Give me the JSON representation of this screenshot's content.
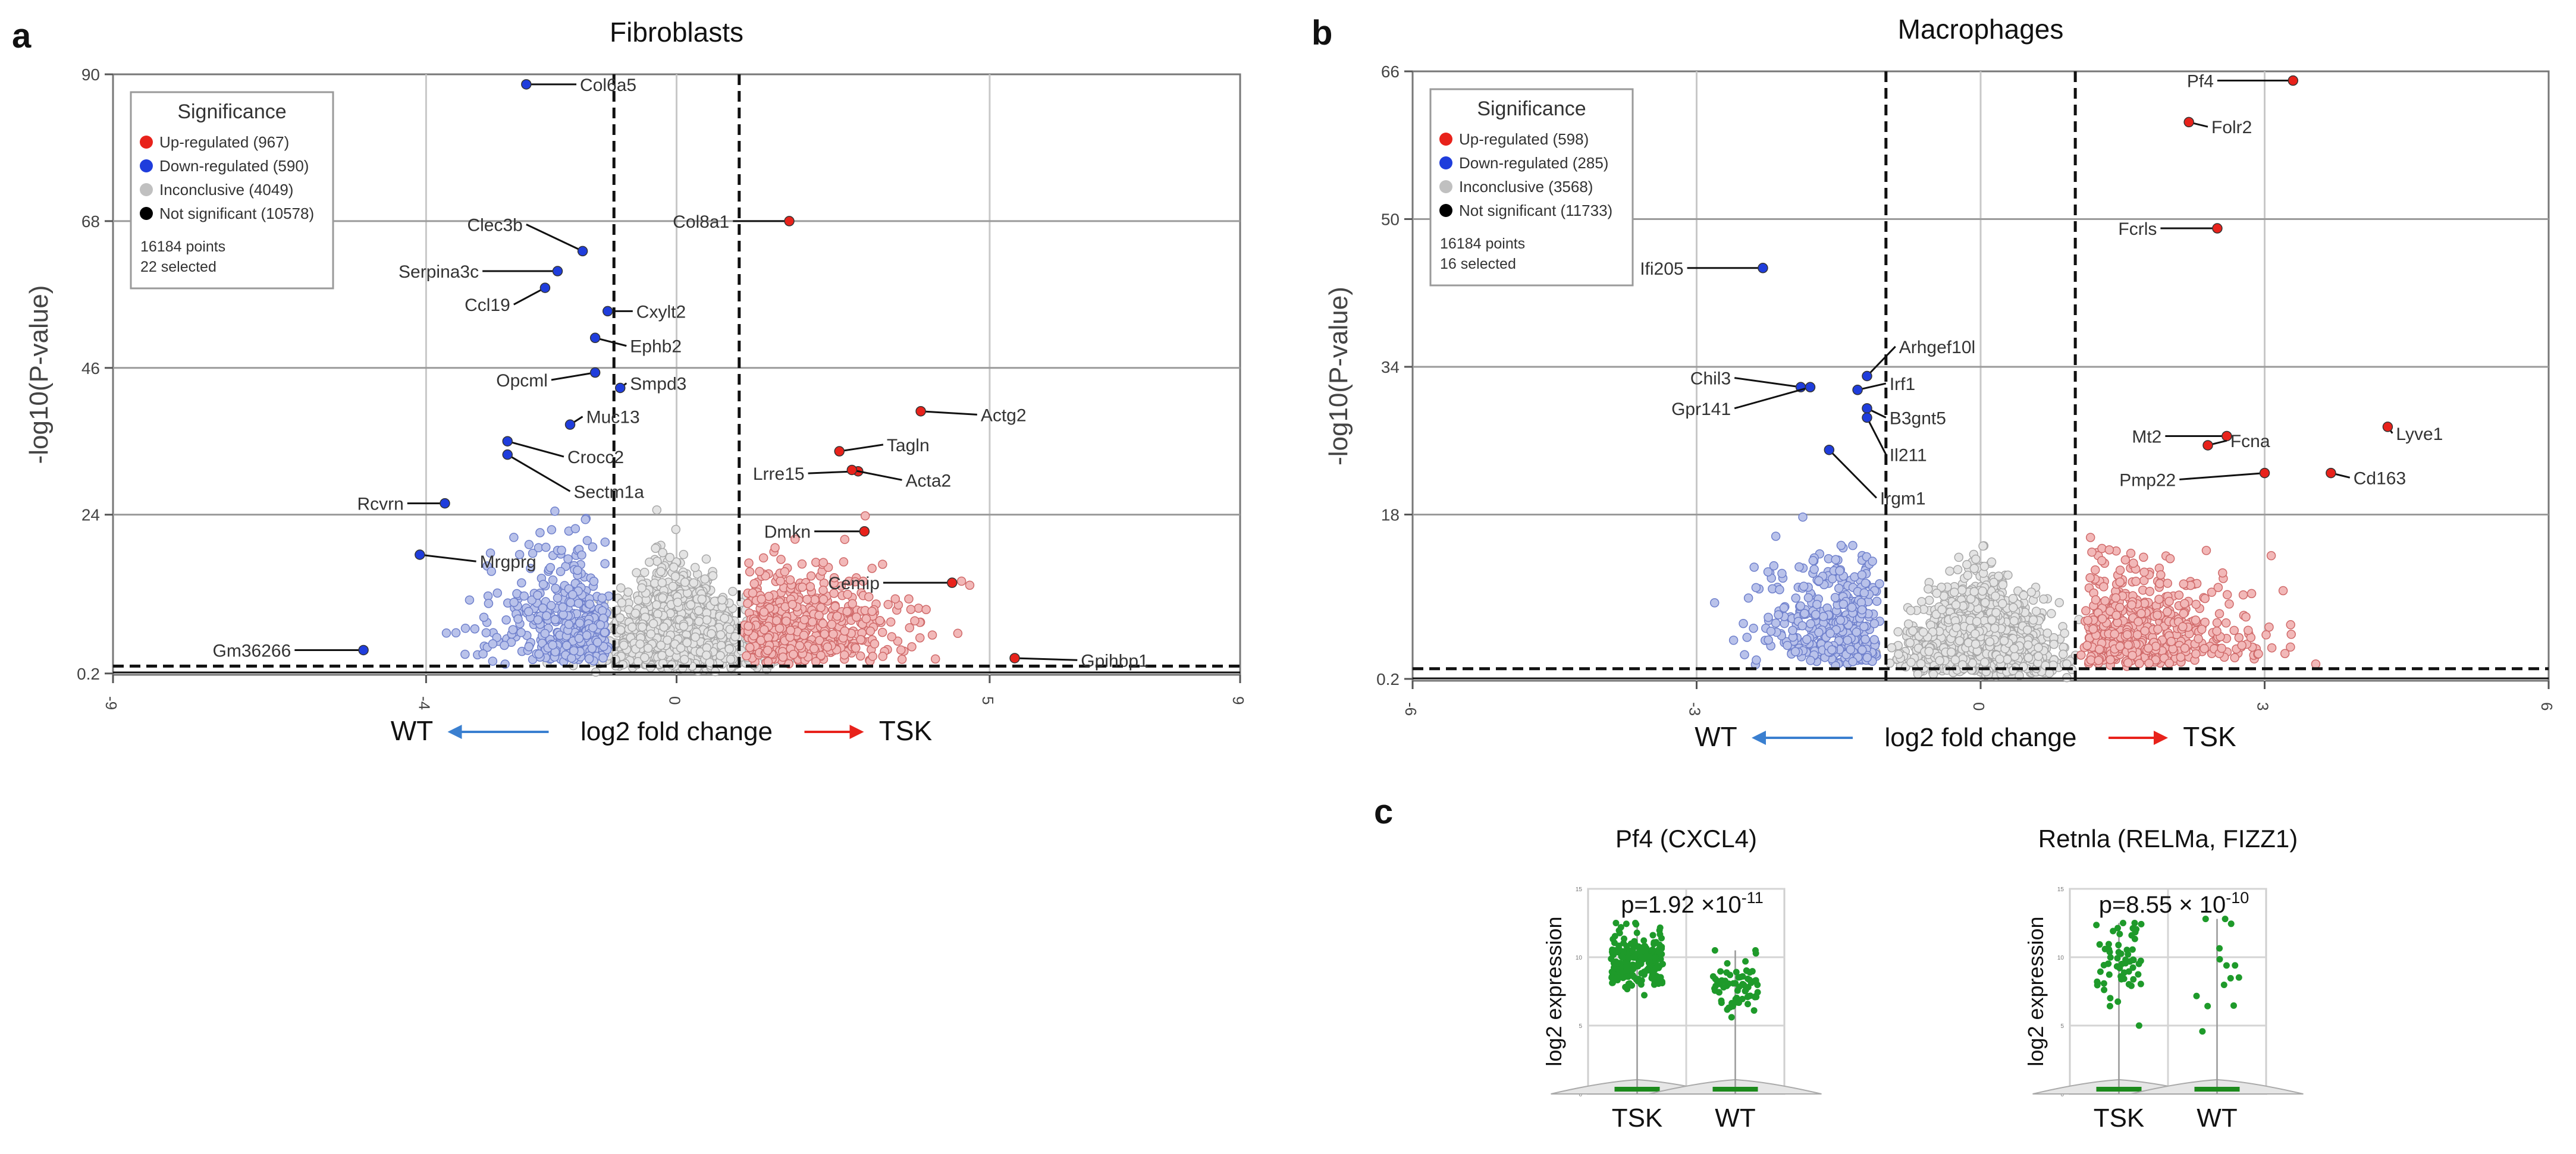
{
  "chart_data": [
    {
      "id": "a",
      "type": "scatter",
      "panel_letter": "a",
      "title": "Fibroblasts",
      "xlabel": "log2 fold change",
      "ylabel": "-log10(P-value)",
      "xlabel_left": "WT",
      "xlabel_right": "TSK",
      "xlim": [
        -9,
        9
      ],
      "ylim": [
        0,
        90
      ],
      "x_ticks": [
        -9,
        -4,
        0,
        5,
        9
      ],
      "y_ticks": [
        0.2,
        24,
        46,
        68,
        90
      ],
      "grid_x": [
        -4,
        0,
        5
      ],
      "grid_y": [
        24,
        46,
        68
      ],
      "threshold_x": [
        -1,
        1
      ],
      "threshold_y": 1.3,
      "legend": {
        "title": "Significance",
        "entries": [
          {
            "label": "Up-regulated (967)",
            "color": "#e8221b"
          },
          {
            "label": "Down-regulated (590)",
            "color": "#1f3ddc"
          },
          {
            "label": "Inconclusive (4049)",
            "color": "#c0c0c0"
          },
          {
            "label": "Not significant (10578)",
            "color": "#000000"
          }
        ],
        "points_text": "16184 points",
        "selected_text": "22 selected"
      },
      "labeled_points": [
        {
          "gene": "Col6a5",
          "x": -2.4,
          "y": 88.5,
          "lx": -1.6,
          "ly": 88.5,
          "dir": "down"
        },
        {
          "gene": "Clec3b",
          "x": -1.5,
          "y": 63.5,
          "lx": -2.4,
          "ly": 67.5,
          "dir": "down"
        },
        {
          "gene": "Serpina3c",
          "x": -1.9,
          "y": 60.5,
          "lx": -3.1,
          "ly": 60.5,
          "dir": "down"
        },
        {
          "gene": "Ccl19",
          "x": -2.1,
          "y": 58.0,
          "lx": -2.6,
          "ly": 55.5,
          "dir": "down"
        },
        {
          "gene": "Cxylt2",
          "x": -1.1,
          "y": 54.5,
          "lx": -0.7,
          "ly": 54.5,
          "dir": "down"
        },
        {
          "gene": "Ephb2",
          "x": -1.3,
          "y": 50.5,
          "lx": -0.8,
          "ly": 49.3,
          "dir": "down"
        },
        {
          "gene": "Opcml",
          "x": -1.3,
          "y": 45.3,
          "lx": -2.0,
          "ly": 44.2,
          "dir": "down"
        },
        {
          "gene": "Smpd3",
          "x": -0.9,
          "y": 43.0,
          "lx": -0.8,
          "ly": 43.7,
          "dir": "down"
        },
        {
          "gene": "Muc13",
          "x": -1.7,
          "y": 37.5,
          "lx": -1.5,
          "ly": 38.7,
          "dir": "down"
        },
        {
          "gene": "Crocc2",
          "x": -2.7,
          "y": 35.0,
          "lx": -1.8,
          "ly": 32.7,
          "dir": "down"
        },
        {
          "gene": "Sectm1a",
          "x": -2.7,
          "y": 33.0,
          "lx": -1.7,
          "ly": 27.5,
          "dir": "down"
        },
        {
          "gene": "Rcvrn",
          "x": -3.7,
          "y": 25.7,
          "lx": -4.3,
          "ly": 25.7,
          "dir": "down"
        },
        {
          "gene": "Mrgprg",
          "x": -4.1,
          "y": 18.0,
          "lx": -3.2,
          "ly": 17.0,
          "dir": "down"
        },
        {
          "gene": "Gm36266",
          "x": -5.0,
          "y": 3.7,
          "lx": -6.1,
          "ly": 3.7,
          "dir": "down"
        },
        {
          "gene": "Col8a1",
          "x": 1.8,
          "y": 68.0,
          "lx": 0.9,
          "ly": 68.0,
          "dir": "up"
        },
        {
          "gene": "Actg2",
          "x": 3.9,
          "y": 39.5,
          "lx": 4.8,
          "ly": 39.0,
          "dir": "up"
        },
        {
          "gene": "Tagln",
          "x": 2.6,
          "y": 33.5,
          "lx": 3.3,
          "ly": 34.5,
          "dir": "up"
        },
        {
          "gene": "Lrre15",
          "x": 2.9,
          "y": 30.5,
          "lx": 2.1,
          "ly": 30.2,
          "dir": "up"
        },
        {
          "gene": "Acta2",
          "x": 2.8,
          "y": 30.7,
          "lx": 3.6,
          "ly": 29.2,
          "dir": "up"
        },
        {
          "gene": "Dmkn",
          "x": 3.0,
          "y": 21.5,
          "lx": 2.2,
          "ly": 21.5,
          "dir": "up"
        },
        {
          "gene": "Cemip",
          "x": 4.4,
          "y": 13.8,
          "lx": 3.3,
          "ly": 13.8,
          "dir": "up"
        },
        {
          "gene": "Gpihbp1",
          "x": 5.4,
          "y": 2.5,
          "lx": 6.4,
          "ly": 2.2,
          "dir": "up"
        }
      ]
    },
    {
      "id": "b",
      "type": "scatter",
      "panel_letter": "b",
      "title": "Macrophages",
      "xlabel": "log2 fold change",
      "ylabel": "-log10(P-value)",
      "xlabel_left": "WT",
      "xlabel_right": "TSK",
      "xlim": [
        -6,
        6
      ],
      "ylim": [
        0,
        66
      ],
      "x_ticks": [
        -6,
        -3,
        0,
        3,
        6
      ],
      "y_ticks": [
        0.2,
        18,
        34,
        50,
        66
      ],
      "grid_x": [
        -3,
        0,
        3
      ],
      "grid_y": [
        18,
        34,
        50
      ],
      "threshold_x": [
        -1,
        1
      ],
      "threshold_y": 1.3,
      "legend": {
        "title": "Significance",
        "entries": [
          {
            "label": "Up-regulated (598)",
            "color": "#e8221b"
          },
          {
            "label": "Down-regulated (285)",
            "color": "#1f3ddc"
          },
          {
            "label": "Inconclusive (3568)",
            "color": "#c0c0c0"
          },
          {
            "label": "Not significant (11733)",
            "color": "#000000"
          }
        ],
        "points_text": "16184 points",
        "selected_text": "16 selected"
      },
      "labeled_points": [
        {
          "gene": "Pf4",
          "x": 3.3,
          "y": 65.0,
          "lx": 2.5,
          "ly": 65.0,
          "dir": "up"
        },
        {
          "gene": "Fcrls",
          "x": 2.5,
          "y": 49.0,
          "lx": 1.9,
          "ly": 49.0,
          "dir": "up"
        },
        {
          "gene": "Folr2",
          "x": 2.2,
          "y": 60.5,
          "lx": 2.4,
          "ly": 60.0,
          "dir": "up"
        },
        {
          "gene": "Mt2",
          "x": 2.6,
          "y": 26.5,
          "lx": 1.95,
          "ly": 26.5,
          "dir": "up"
        },
        {
          "gene": "Fcna",
          "x": 2.4,
          "y": 25.5,
          "lx": 2.6,
          "ly": 26.0,
          "dir": "up"
        },
        {
          "gene": "Lyve1",
          "x": 4.3,
          "y": 27.5,
          "lx": 4.35,
          "ly": 26.8,
          "dir": "up"
        },
        {
          "gene": "Pmp22",
          "x": 3.0,
          "y": 22.5,
          "lx": 2.1,
          "ly": 21.8,
          "dir": "up"
        },
        {
          "gene": "Cd163",
          "x": 3.7,
          "y": 22.5,
          "lx": 3.9,
          "ly": 22.0,
          "dir": "up"
        },
        {
          "gene": "Ifi205",
          "x": -2.3,
          "y": 44.7,
          "lx": -3.1,
          "ly": 44.7,
          "dir": "down"
        },
        {
          "gene": "Arhgef10l",
          "x": -1.2,
          "y": 33.0,
          "lx": -0.9,
          "ly": 36.2,
          "dir": "down"
        },
        {
          "gene": "Chil3",
          "x": -1.9,
          "y": 31.8,
          "lx": -2.6,
          "ly": 32.8,
          "dir": "down"
        },
        {
          "gene": "Gpr141",
          "x": -1.8,
          "y": 31.8,
          "lx": -2.6,
          "ly": 29.5,
          "dir": "down"
        },
        {
          "gene": "Irf1",
          "x": -1.3,
          "y": 31.5,
          "lx": -1.0,
          "ly": 32.2,
          "dir": "down"
        },
        {
          "gene": "B3gnt5",
          "x": -1.2,
          "y": 29.5,
          "lx": -1.0,
          "ly": 28.5,
          "dir": "down"
        },
        {
          "gene": "Il211",
          "x": -1.2,
          "y": 28.5,
          "lx": -1.0,
          "ly": 24.5,
          "dir": "down"
        },
        {
          "gene": "Irgm1",
          "x": -1.6,
          "y": 25.0,
          "lx": -1.1,
          "ly": 19.8,
          "dir": "down"
        }
      ]
    },
    {
      "id": "c1",
      "type": "scatter",
      "panel_letter": "c",
      "title": "Pf4 (CXCL4)",
      "ylabel": "log2 expression",
      "categories": [
        "TSK",
        "WT"
      ],
      "pvalue_base": "p=1.92 ×10",
      "pvalue_exp": "-11",
      "ylim": [
        0,
        15
      ],
      "y_ticks": [
        0,
        5,
        10,
        15
      ],
      "groups": [
        {
          "name": "TSK",
          "n": 220,
          "mean": 9.8,
          "sd": 1.1,
          "min": 6.5,
          "max": 12.5
        },
        {
          "name": "WT",
          "n": 70,
          "mean": 8.2,
          "sd": 1.2,
          "min": 5.5,
          "max": 10.5
        }
      ]
    },
    {
      "id": "c2",
      "type": "scatter",
      "title": "Retnla (RELMa, FIZZ1)",
      "ylabel": "log2 expression",
      "categories": [
        "TSK",
        "WT"
      ],
      "pvalue_base": "p=8.55 × 10",
      "pvalue_exp": "-10",
      "ylim": [
        0,
        15
      ],
      "y_ticks": [
        0,
        5,
        10,
        15
      ],
      "groups": [
        {
          "name": "TSK",
          "n": 60,
          "mean": 9.5,
          "sd": 1.8,
          "min": 5.0,
          "max": 12.5
        },
        {
          "name": "WT",
          "n": 14,
          "mean": 9.0,
          "sd": 3.2,
          "min": 4.0,
          "max": 12.8
        }
      ]
    }
  ]
}
